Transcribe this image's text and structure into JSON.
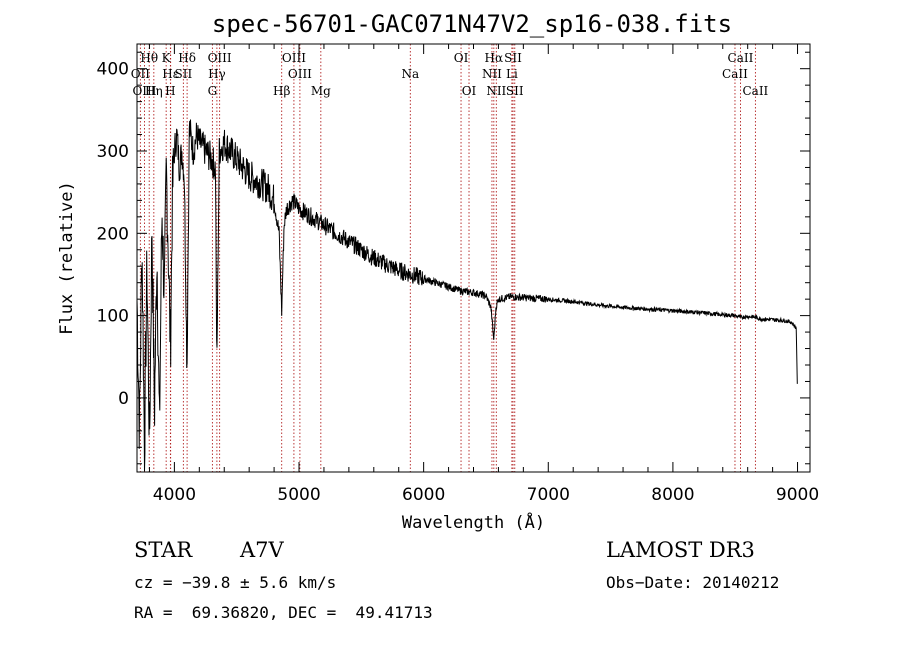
{
  "chart_data": {
    "type": "line",
    "title": "spec-56701-GAC071N47V2_sp16-038.fits",
    "xlabel": "Wavelength (Å)",
    "ylabel": "Flux (relative)",
    "xlim": [
      3700,
      9100
    ],
    "ylim": [
      -90,
      430
    ],
    "x_ticks": [
      4000,
      5000,
      6000,
      7000,
      8000,
      9000
    ],
    "y_ticks": [
      0,
      100,
      200,
      300,
      400
    ],
    "spectrum_anchors": {
      "x": [
        3700,
        3720,
        3740,
        3760,
        3780,
        3800,
        3820,
        3840,
        3860,
        3880,
        3900,
        3920,
        3935,
        3950,
        3968,
        3985,
        4000,
        4020,
        4040,
        4060,
        4080,
        4101,
        4120,
        4150,
        4180,
        4200,
        4250,
        4300,
        4330,
        4340,
        4360,
        4400,
        4450,
        4500,
        4550,
        4600,
        4650,
        4700,
        4750,
        4800,
        4840,
        4861,
        4880,
        4900,
        4950,
        5000,
        5050,
        5100,
        5150,
        5200,
        5300,
        5400,
        5500,
        5600,
        5700,
        5800,
        5900,
        6000,
        6100,
        6200,
        6300,
        6400,
        6500,
        6540,
        6563,
        6580,
        6600,
        6700,
        6800,
        7000,
        7200,
        7400,
        7600,
        7800,
        8000,
        8200,
        8400,
        8500,
        8542,
        8600,
        8662,
        8700,
        8800,
        8900,
        8950,
        8990,
        9000
      ],
      "y": [
        120,
        -40,
        190,
        -60,
        160,
        -60,
        210,
        -20,
        180,
        -40,
        230,
        120,
        280,
        190,
        60,
        250,
        300,
        320,
        280,
        300,
        270,
        30,
        330,
        300,
        320,
        310,
        300,
        290,
        280,
        30,
        300,
        310,
        300,
        290,
        280,
        270,
        265,
        260,
        255,
        240,
        200,
        105,
        210,
        230,
        240,
        230,
        225,
        220,
        215,
        210,
        200,
        190,
        180,
        170,
        162,
        155,
        150,
        145,
        140,
        135,
        130,
        128,
        124,
        110,
        70,
        110,
        120,
        123,
        122,
        120,
        117,
        113,
        110,
        108,
        106,
        104,
        101,
        100,
        98,
        99,
        98,
        96,
        95,
        94,
        92,
        85,
        0
      ]
    },
    "emission_lines": [
      {
        "label": "Hθ",
        "wavelength": 3798,
        "row": 1
      },
      {
        "label": "K",
        "wavelength": 3934,
        "row": 1
      },
      {
        "label": "Hδ",
        "wavelength": 4102,
        "row": 1
      },
      {
        "label": "OIII",
        "wavelength": 4363,
        "row": 1
      },
      {
        "label": "OIII",
        "wavelength": 4959,
        "row": 1
      },
      {
        "label": "OI",
        "wavelength": 6300,
        "row": 1
      },
      {
        "label": "Hα",
        "wavelength": 6563,
        "row": 1
      },
      {
        "label": "SII",
        "wavelength": 6717,
        "row": 1
      },
      {
        "label": "CaII",
        "wavelength": 8542,
        "row": 1
      },
      {
        "label": "OII",
        "wavelength": 3727,
        "row": 2
      },
      {
        "label": "Hε",
        "wavelength": 3970,
        "row": 2
      },
      {
        "label": "SII",
        "wavelength": 4072,
        "row": 2
      },
      {
        "label": "Hγ",
        "wavelength": 4341,
        "row": 2
      },
      {
        "label": "OIII",
        "wavelength": 5007,
        "row": 2
      },
      {
        "label": "Na",
        "wavelength": 5893,
        "row": 2
      },
      {
        "label": "NII",
        "wavelength": 6548,
        "row": 2
      },
      {
        "label": "Li",
        "wavelength": 6708,
        "row": 2
      },
      {
        "label": "CaII",
        "wavelength": 8498,
        "row": 2
      },
      {
        "label": "OIII",
        "wavelength": 3760,
        "row": 3
      },
      {
        "label": "Hη",
        "wavelength": 3835,
        "row": 3
      },
      {
        "label": "H",
        "wavelength": 3968,
        "row": 3
      },
      {
        "label": "G",
        "wavelength": 4305,
        "row": 3
      },
      {
        "label": "Hβ",
        "wavelength": 4861,
        "row": 3
      },
      {
        "label": "Mg",
        "wavelength": 5175,
        "row": 3
      },
      {
        "label": "OI",
        "wavelength": 6364,
        "row": 3
      },
      {
        "label": "NII",
        "wavelength": 6583,
        "row": 3
      },
      {
        "label": "SII",
        "wavelength": 6731,
        "row": 3
      },
      {
        "label": "CaII",
        "wavelength": 8662,
        "row": 3
      }
    ]
  },
  "info": {
    "object_class": "STAR",
    "subclass": "A7V",
    "survey": "LAMOST DR3",
    "redshift": "cz = −39.8 ± 5.6 km/s",
    "obs_date": "Obs−Date: 20140212",
    "coords": "RA =  69.36820, DEC =  49.41713"
  }
}
